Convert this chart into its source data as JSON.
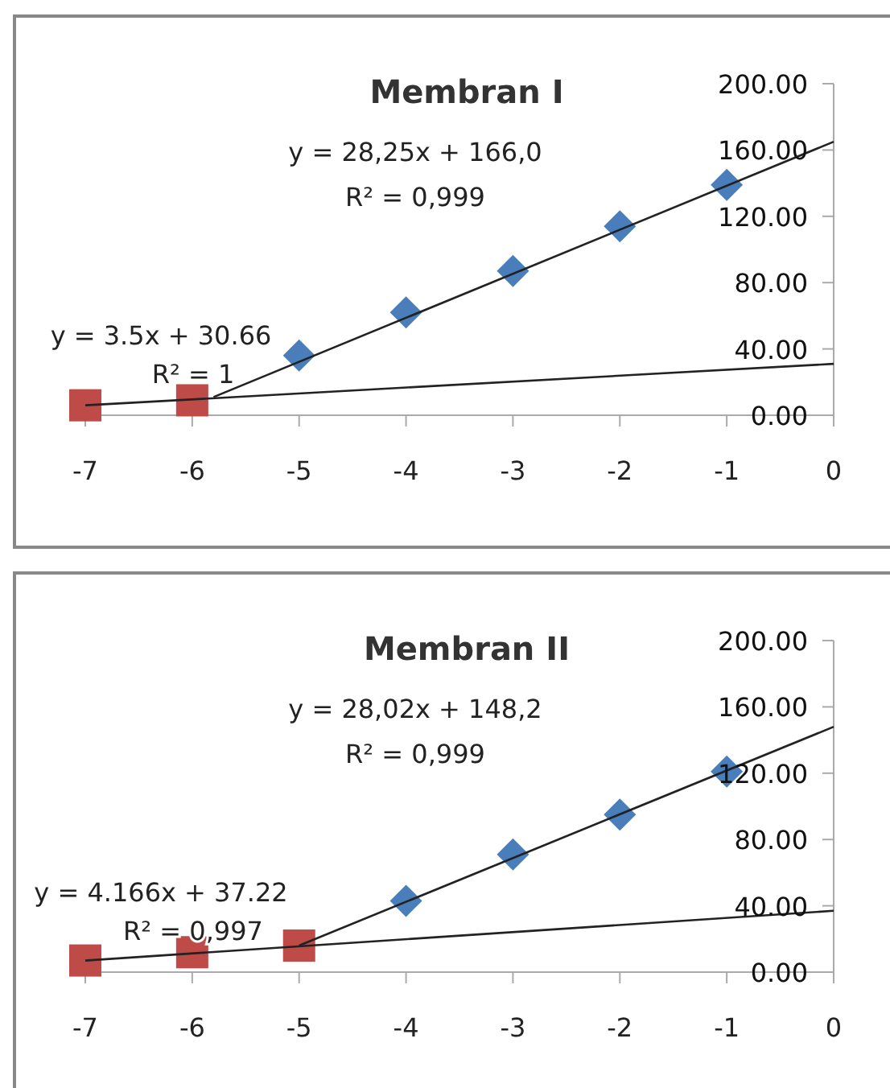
{
  "chart_data": [
    {
      "type": "scatter",
      "title": "Membran I",
      "xlim": [
        -7,
        0
      ],
      "xticks": [
        -7,
        -6,
        -5,
        -4,
        -3,
        -2,
        -1,
        0
      ],
      "ylim": [
        0,
        200
      ],
      "yticks": [
        {
          "value": 0,
          "label": "0.00"
        },
        {
          "value": 40,
          "label": "40.00"
        },
        {
          "value": 80,
          "label": "80.00"
        },
        {
          "value": 120,
          "label": "120.00"
        },
        {
          "value": 160,
          "label": "160.00"
        },
        {
          "value": 200,
          "label": "200.00"
        }
      ],
      "grid": false,
      "series": [
        {
          "marker": "diamond",
          "color": "#4a7ebb",
          "x": [
            -5,
            -4,
            -3,
            -2,
            -1
          ],
          "values": [
            36,
            62,
            87,
            114,
            139
          ]
        },
        {
          "marker": "square",
          "color": "#be4b48",
          "x": [
            -7,
            -6
          ],
          "values": [
            6,
            9
          ]
        },
        {
          "type": "line",
          "marker": "none",
          "color": "#222222",
          "x": [
            -5.8,
            0
          ],
          "values": [
            11,
            165
          ]
        },
        {
          "type": "line",
          "marker": "none",
          "color": "#222222",
          "x": [
            -7,
            0
          ],
          "values": [
            6,
            31
          ]
        }
      ],
      "annotations": [
        "y = 28,25x + 166,0",
        "R² = 0,999",
        "y = 3.5x + 30.66",
        "R² = 1"
      ]
    },
    {
      "type": "scatter",
      "title": "Membran II",
      "xlim": [
        -7,
        0
      ],
      "xticks": [
        -7,
        -6,
        -5,
        -4,
        -3,
        -2,
        -1,
        0
      ],
      "ylim": [
        0,
        200
      ],
      "yticks": [
        {
          "value": 0,
          "label": "0.00"
        },
        {
          "value": 40,
          "label": "40.00"
        },
        {
          "value": 80,
          "label": "80.00"
        },
        {
          "value": 120,
          "label": "120.00"
        },
        {
          "value": 160,
          "label": "160.00"
        },
        {
          "value": 200,
          "label": "200.00"
        }
      ],
      "grid": false,
      "series": [
        {
          "marker": "diamond",
          "color": "#4a7ebb",
          "x": [
            -4,
            -3,
            -2,
            -1
          ],
          "values": [
            43,
            71,
            95,
            121
          ]
        },
        {
          "marker": "square",
          "color": "#be4b48",
          "x": [
            -7,
            -6,
            -5
          ],
          "values": [
            7,
            12,
            16
          ]
        },
        {
          "type": "line",
          "marker": "none",
          "color": "#222222",
          "x": [
            -5,
            0
          ],
          "values": [
            16,
            148
          ]
        },
        {
          "type": "line",
          "marker": "none",
          "color": "#222222",
          "x": [
            -7,
            0
          ],
          "values": [
            7,
            37
          ]
        }
      ],
      "annotations": [
        "y = 28,02x + 148,2",
        "R² = 0,999",
        "y = 4.166x + 37.22",
        "R² = 0,997"
      ]
    }
  ]
}
